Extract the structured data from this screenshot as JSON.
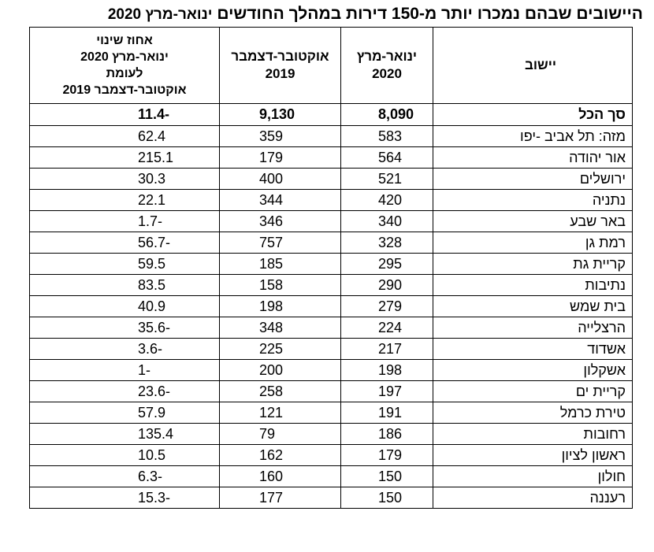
{
  "title": {
    "main": "היישובים שבהם נמכרו יותר מ-150 דירות במהלך החודשים",
    "period": "ינואר-מרץ 2020"
  },
  "table": {
    "headers": {
      "settlement": "יישוב",
      "jan_mar_2020": [
        "ינואר-מרץ",
        "2020"
      ],
      "oct_dec_2019": [
        "אוקטובר-דצמבר",
        "2019"
      ],
      "change": [
        "אחוז שינוי",
        "ינואר-מרץ 2020",
        "לעומת",
        "אוקטובר-דצמבר 2019"
      ]
    },
    "total": {
      "name": "סך הכל",
      "jan_mar_2020": "8,090",
      "oct_dec_2019": "9,130",
      "change": "11.4-"
    },
    "rows": [
      {
        "name": "מזה: תל אביב -יפו",
        "jan_mar_2020": "583",
        "oct_dec_2019": "359",
        "change": "62.4"
      },
      {
        "name": "אור יהודה",
        "jan_mar_2020": "564",
        "oct_dec_2019": "179",
        "change": "215.1"
      },
      {
        "name": "ירושלים",
        "jan_mar_2020": "521",
        "oct_dec_2019": "400",
        "change": "30.3"
      },
      {
        "name": "נתניה",
        "jan_mar_2020": "420",
        "oct_dec_2019": "344",
        "change": "22.1"
      },
      {
        "name": "באר שבע",
        "jan_mar_2020": "340",
        "oct_dec_2019": "346",
        "change": "1.7-"
      },
      {
        "name": "רמת גן",
        "jan_mar_2020": "328",
        "oct_dec_2019": "757",
        "change": "56.7-"
      },
      {
        "name": "קריית גת",
        "jan_mar_2020": "295",
        "oct_dec_2019": "185",
        "change": "59.5"
      },
      {
        "name": "נתיבות",
        "jan_mar_2020": "290",
        "oct_dec_2019": "158",
        "change": "83.5"
      },
      {
        "name": "בית שמש",
        "jan_mar_2020": "279",
        "oct_dec_2019": "198",
        "change": "40.9"
      },
      {
        "name": "הרצלייה",
        "jan_mar_2020": "224",
        "oct_dec_2019": "348",
        "change": "35.6-"
      },
      {
        "name": "אשדוד",
        "jan_mar_2020": "217",
        "oct_dec_2019": "225",
        "change": "3.6-"
      },
      {
        "name": "אשקלון",
        "jan_mar_2020": "198",
        "oct_dec_2019": "200",
        "change": "1-"
      },
      {
        "name": "קריית ים",
        "jan_mar_2020": "197",
        "oct_dec_2019": "258",
        "change": "23.6-"
      },
      {
        "name": "טירת כרמל",
        "jan_mar_2020": "191",
        "oct_dec_2019": "121",
        "change": "57.9"
      },
      {
        "name": "רחובות",
        "jan_mar_2020": "186",
        "oct_dec_2019": "79",
        "change": "135.4"
      },
      {
        "name": "ראשון לציון",
        "jan_mar_2020": "179",
        "oct_dec_2019": "162",
        "change": "10.5"
      },
      {
        "name": "חולון",
        "jan_mar_2020": "150",
        "oct_dec_2019": "160",
        "change": "6.3-"
      },
      {
        "name": "רעננה",
        "jan_mar_2020": "150",
        "oct_dec_2019": "177",
        "change": "15.3-"
      }
    ]
  }
}
